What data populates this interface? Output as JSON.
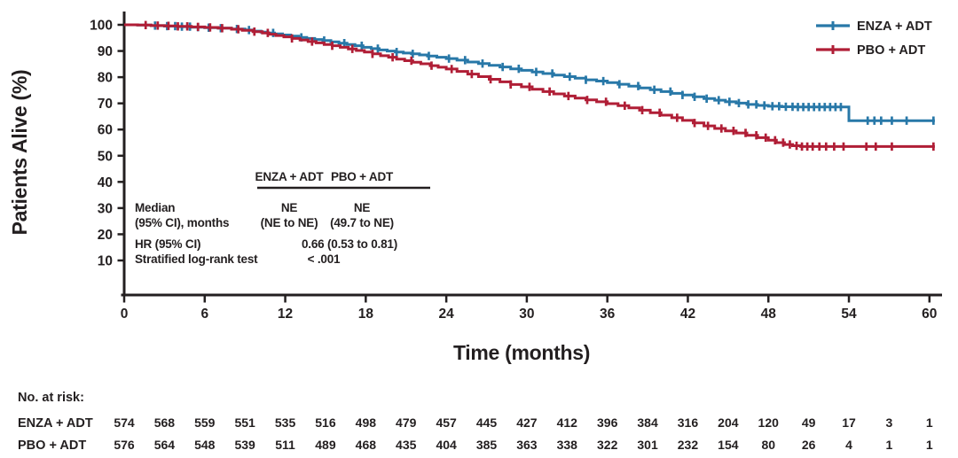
{
  "chart_data": {
    "type": "line",
    "subtype": "kaplan-meier-step",
    "title": "",
    "xlabel": "Time (months)",
    "ylabel": "Patients Alive (%)",
    "xlim": [
      0,
      61
    ],
    "ylim": [
      0,
      100
    ],
    "xticks": [
      0,
      6,
      12,
      18,
      24,
      30,
      36,
      42,
      48,
      54,
      60
    ],
    "yticks": [
      10,
      20,
      30,
      40,
      50,
      60,
      70,
      80,
      90,
      100
    ],
    "grid": false,
    "legend_position": "top-right",
    "series": [
      {
        "name": "ENZA + ADT",
        "color": "#2878A8",
        "points": [
          [
            0,
            100
          ],
          [
            1,
            99.9
          ],
          [
            2,
            99.7
          ],
          [
            3,
            99.5
          ],
          [
            4,
            99.3
          ],
          [
            5,
            99.1
          ],
          [
            6,
            98.9
          ],
          [
            7,
            98.7
          ],
          [
            8,
            98.4
          ],
          [
            9,
            98.0
          ],
          [
            9.6,
            97.6
          ],
          [
            10.2,
            97.2
          ],
          [
            10.7,
            96.9
          ],
          [
            11.2,
            96.5
          ],
          [
            11.8,
            96.1
          ],
          [
            12.4,
            95.7
          ],
          [
            13,
            95.2
          ],
          [
            13.6,
            94.8
          ],
          [
            14.2,
            94.4
          ],
          [
            14.8,
            94.0
          ],
          [
            15.4,
            93.5
          ],
          [
            16,
            93.0
          ],
          [
            16.6,
            92.5
          ],
          [
            17.2,
            92.0
          ],
          [
            17.8,
            91.4
          ],
          [
            18.4,
            90.9
          ],
          [
            19,
            90.4
          ],
          [
            19.6,
            90.0
          ],
          [
            20.2,
            89.6
          ],
          [
            20.8,
            89.2
          ],
          [
            21.4,
            88.9
          ],
          [
            22,
            88.5
          ],
          [
            22.6,
            88.1
          ],
          [
            23.3,
            87.6
          ],
          [
            24,
            87.1
          ],
          [
            24.8,
            86.5
          ],
          [
            25.6,
            85.8
          ],
          [
            26.4,
            85.2
          ],
          [
            27.2,
            84.5
          ],
          [
            28,
            83.9
          ],
          [
            28.8,
            83.2
          ],
          [
            29.6,
            82.6
          ],
          [
            30.4,
            82.0
          ],
          [
            31.2,
            81.4
          ],
          [
            32,
            80.8
          ],
          [
            32.8,
            80.2
          ],
          [
            33.6,
            79.6
          ],
          [
            34.4,
            79.0
          ],
          [
            35.2,
            78.5
          ],
          [
            36,
            77.9
          ],
          [
            36.8,
            77.3
          ],
          [
            37.6,
            76.6
          ],
          [
            38.4,
            75.9
          ],
          [
            39.2,
            75.2
          ],
          [
            40,
            74.5
          ],
          [
            40.8,
            73.8
          ],
          [
            41.6,
            73.2
          ],
          [
            42.4,
            72.5
          ],
          [
            43.2,
            71.8
          ],
          [
            44,
            71.2
          ],
          [
            44.8,
            70.6
          ],
          [
            45.6,
            70.1
          ],
          [
            46.4,
            69.6
          ],
          [
            47.2,
            69.2
          ],
          [
            48,
            68.9
          ],
          [
            49,
            68.7
          ],
          [
            50,
            68.6
          ],
          [
            53.8,
            68.6
          ],
          [
            54,
            63.4
          ],
          [
            60.4,
            63.4
          ]
        ],
        "censor_times": [
          2.3,
          3.2,
          3.8,
          4.3,
          4.9,
          5.5,
          6.3,
          7.2,
          8.4,
          9.3,
          11.1,
          13.2,
          14.9,
          16.4,
          17.7,
          18.9,
          20.3,
          21.5,
          22.7,
          24.2,
          25.4,
          26.7,
          28.2,
          29.4,
          30.7,
          31.9,
          33.2,
          34.4,
          35.7,
          36.9,
          38.3,
          39.5,
          40.7,
          41.6,
          42.5,
          43.4,
          44.3,
          45.1,
          45.8,
          46.5,
          47.1,
          47.7,
          48.3,
          48.8,
          49.3,
          49.8,
          50.2,
          50.6,
          51.0,
          51.4,
          51.8,
          52.2,
          52.6,
          53.0,
          53.4,
          55.4,
          55.9,
          56.4,
          57.2,
          58.3,
          60.3
        ]
      },
      {
        "name": "PBO + ADT",
        "color": "#B01E36",
        "points": [
          [
            0,
            100
          ],
          [
            1,
            99.9
          ],
          [
            2,
            99.7
          ],
          [
            3,
            99.6
          ],
          [
            4,
            99.4
          ],
          [
            5,
            99.2
          ],
          [
            6,
            99.0
          ],
          [
            7,
            98.7
          ],
          [
            8,
            98.3
          ],
          [
            8.8,
            97.9
          ],
          [
            9.6,
            97.4
          ],
          [
            10.3,
            96.9
          ],
          [
            10.8,
            96.4
          ],
          [
            11.3,
            95.9
          ],
          [
            11.9,
            95.4
          ],
          [
            12.5,
            94.8
          ],
          [
            13.1,
            94.2
          ],
          [
            13.7,
            93.6
          ],
          [
            14.3,
            93.1
          ],
          [
            14.9,
            92.5
          ],
          [
            15.5,
            92.0
          ],
          [
            16.1,
            91.4
          ],
          [
            16.7,
            90.8
          ],
          [
            17.3,
            90.2
          ],
          [
            17.9,
            89.6
          ],
          [
            18.5,
            88.9
          ],
          [
            19.1,
            88.2
          ],
          [
            19.7,
            87.6
          ],
          [
            20.3,
            86.9
          ],
          [
            20.9,
            86.3
          ],
          [
            21.5,
            85.7
          ],
          [
            22.1,
            85.1
          ],
          [
            22.8,
            84.4
          ],
          [
            23.4,
            83.8
          ],
          [
            24,
            83.1
          ],
          [
            24.8,
            82.2
          ],
          [
            25.6,
            81.2
          ],
          [
            26.4,
            80.2
          ],
          [
            27.2,
            79.2
          ],
          [
            28,
            78.2
          ],
          [
            28.8,
            77.2
          ],
          [
            29.6,
            76.3
          ],
          [
            30.4,
            75.4
          ],
          [
            31.2,
            74.5
          ],
          [
            32,
            73.6
          ],
          [
            32.8,
            72.8
          ],
          [
            33.6,
            72.0
          ],
          [
            34.4,
            71.3
          ],
          [
            35.2,
            70.6
          ],
          [
            36,
            69.9
          ],
          [
            36.8,
            69.1
          ],
          [
            37.6,
            68.3
          ],
          [
            38.4,
            67.4
          ],
          [
            39.2,
            66.4
          ],
          [
            40,
            65.5
          ],
          [
            40.8,
            64.5
          ],
          [
            41.6,
            63.5
          ],
          [
            42.4,
            62.5
          ],
          [
            43.2,
            61.4
          ],
          [
            44,
            60.4
          ],
          [
            44.8,
            59.5
          ],
          [
            45.6,
            58.7
          ],
          [
            46.4,
            57.8
          ],
          [
            47.2,
            56.9
          ],
          [
            48,
            55.9
          ],
          [
            48.6,
            55.0
          ],
          [
            49.2,
            54.3
          ],
          [
            49.8,
            53.8
          ],
          [
            50.4,
            53.5
          ],
          [
            60.4,
            53.5
          ]
        ],
        "censor_times": [
          1.6,
          2.5,
          3.3,
          4.0,
          4.7,
          5.5,
          6.4,
          7.3,
          8.5,
          9.7,
          10.7,
          12.5,
          14.0,
          15.5,
          17.0,
          18.5,
          20.0,
          21.4,
          22.9,
          24.4,
          25.9,
          27.3,
          28.8,
          30.2,
          31.7,
          33.1,
          34.5,
          35.9,
          37.3,
          38.6,
          39.9,
          41.2,
          42.5,
          43.5,
          44.5,
          45.4,
          46.3,
          47.1,
          47.8,
          48.5,
          49.1,
          49.6,
          50.1,
          50.5,
          50.9,
          51.3,
          51.8,
          52.3,
          52.9,
          53.6,
          55.3,
          56.0,
          57.2,
          60.3
        ]
      }
    ]
  },
  "stats": {
    "col1_header": "ENZA + ADT",
    "col2_header": "PBO + ADT",
    "median_label_line1": "Median",
    "median_label_line2": "(95% CI), months",
    "median_col1_line1": "NE",
    "median_col1_line2": "(NE to NE)",
    "median_col2_line1": "NE",
    "median_col2_line2": "(49.7 to NE)",
    "hr_label": "HR (95% CI)",
    "hr_value": "0.66 (0.53 to 0.81)",
    "logrank_label": "Stratified log-rank test",
    "logrank_value": "< .001"
  },
  "risk_table": {
    "title": "No. at risk:",
    "times": [
      0,
      3,
      6,
      9,
      12,
      15,
      18,
      21,
      24,
      27,
      30,
      33,
      36,
      39,
      42,
      45,
      48,
      51,
      54,
      57,
      60
    ],
    "rows": [
      {
        "label": "ENZA + ADT",
        "color": "#2878A8",
        "values": [
          574,
          568,
          559,
          551,
          535,
          516,
          498,
          479,
          457,
          445,
          427,
          412,
          396,
          384,
          316,
          204,
          120,
          49,
          17,
          3,
          1
        ]
      },
      {
        "label": "PBO + ADT",
        "color": "#B01E36",
        "values": [
          576,
          564,
          548,
          539,
          511,
          489,
          468,
          435,
          404,
          385,
          363,
          338,
          322,
          301,
          232,
          154,
          80,
          26,
          4,
          1,
          1
        ]
      }
    ]
  },
  "colors": {
    "axis": "#231F20",
    "text": "#231F20",
    "enza": "#2878A8",
    "pbo": "#B01E36"
  }
}
